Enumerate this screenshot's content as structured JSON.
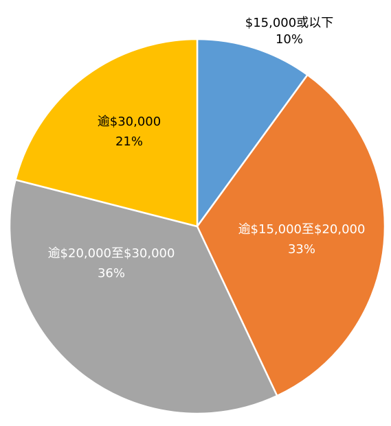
{
  "chart_data": {
    "type": "pie",
    "start_angle_deg": 0,
    "direction": "clockwise",
    "slices": [
      {
        "label": "$15,000或以下",
        "value": 10,
        "percent_label": "10%",
        "color": "#5B9BD5",
        "text_color": "#000000"
      },
      {
        "label": "逾$15,000至$20,000",
        "value": 33,
        "percent_label": "33%",
        "color": "#ED7D31",
        "text_color": "#FFFFFF"
      },
      {
        "label": "逾$20,000至$30,000",
        "value": 36,
        "percent_label": "36%",
        "color": "#A5A5A5",
        "text_color": "#FFFFFF"
      },
      {
        "label": "逾$30,000",
        "value": 21,
        "percent_label": "21%",
        "color": "#FFC000",
        "text_color": "#000000"
      }
    ],
    "legend": "none"
  }
}
